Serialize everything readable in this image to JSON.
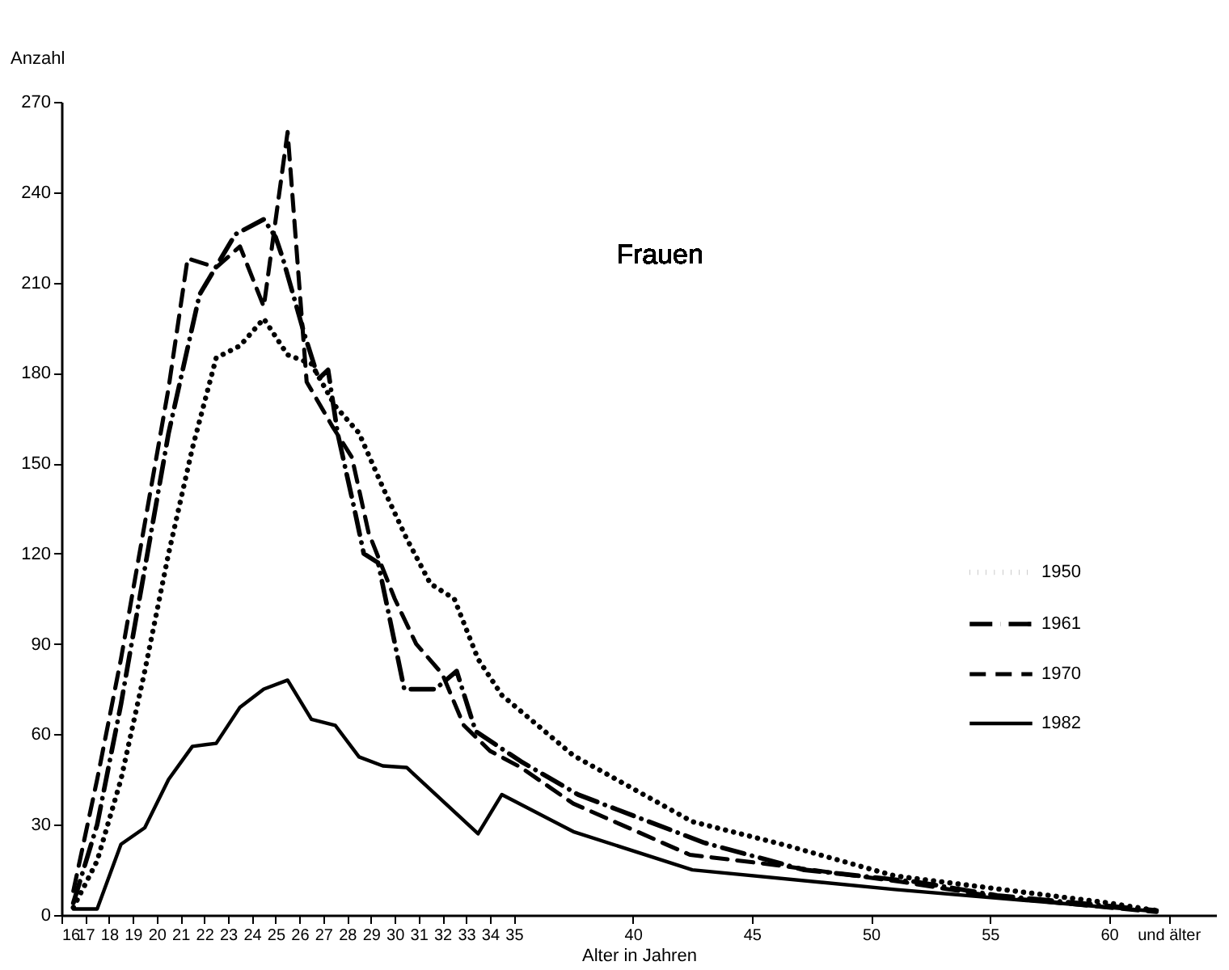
{
  "chart_data": {
    "type": "line",
    "title": "Frauen",
    "xlabel": "Alter in Jahren",
    "ylabel": "Anzahl",
    "xlim": [
      16,
      64.5
    ],
    "ylim": [
      0,
      270
    ],
    "xticks": [
      16,
      17,
      18,
      19,
      20,
      21,
      22,
      23,
      24,
      25,
      26,
      27,
      28,
      29,
      30,
      31,
      32,
      33,
      34,
      35,
      40,
      45,
      50,
      55,
      60,
      {
        "value": 62.5,
        "label": "und älter"
      }
    ],
    "yticks": [
      0,
      30,
      60,
      90,
      120,
      150,
      180,
      210,
      240,
      270
    ],
    "grid": false,
    "legend": "right",
    "marker": "none",
    "series": [
      {
        "name": "1950",
        "color": "#000000",
        "line_style": "dotted",
        "x": [
          16.5,
          17.5,
          18.5,
          19.5,
          20.5,
          21.5,
          22.5,
          23.5,
          24.5,
          25.5,
          26.5,
          27.5,
          28.5,
          29.5,
          30.5,
          31.5,
          32.5,
          33.5,
          34.5,
          37.5,
          42.5,
          46.5,
          51,
          55.5,
          60,
          62
        ],
        "values": [
          2.5,
          18,
          45,
          81,
          120,
          155,
          185,
          189,
          198,
          186,
          183,
          169,
          160,
          142,
          125,
          110,
          105,
          85,
          73,
          53,
          31,
          23,
          13,
          8.5,
          4,
          1.5
        ]
      },
      {
        "name": "1961",
        "color": "#000000",
        "line_style": "dashdot",
        "x": [
          16.5,
          17.5,
          18.5,
          19.5,
          20.5,
          21.8,
          23.3,
          24.5,
          25,
          25.3,
          26.2,
          26.8,
          27.2,
          27.6,
          28.3,
          28.7,
          29.3,
          29.8,
          30.4,
          31.7,
          32.6,
          33.4,
          35.3,
          37.7,
          43,
          47.2,
          51.9,
          55.3,
          62
        ],
        "values": [
          4,
          30,
          70,
          115,
          160,
          206,
          226,
          231,
          225,
          218,
          193,
          178,
          181,
          160,
          135,
          120,
          117,
          98,
          75,
          75,
          81,
          61,
          51,
          40,
          24,
          15,
          11,
          6.5,
          1.5
        ]
      },
      {
        "name": "1970",
        "color": "#000000",
        "line_style": "dashed",
        "x": [
          16.5,
          17.5,
          18.5,
          19.5,
          20.5,
          21.3,
          22.5,
          23.5,
          24.5,
          25.5,
          26.3,
          27.4,
          28.2,
          28.9,
          30,
          30.9,
          32,
          32.9,
          34,
          35.3,
          37.5,
          42.4,
          46,
          51.3,
          55.3,
          62
        ],
        "values": [
          8,
          45,
          85,
          130,
          175,
          218,
          215,
          222,
          202,
          260,
          177,
          162,
          152,
          127,
          105,
          90,
          80,
          63,
          54.5,
          49,
          37,
          20,
          16.6,
          11,
          6,
          1
        ]
      },
      {
        "name": "1982",
        "color": "#000000",
        "line_style": "solid",
        "x": [
          16.5,
          17.5,
          18.5,
          19.5,
          20.5,
          21.5,
          22.5,
          23.5,
          24.5,
          25.5,
          26.5,
          27.5,
          28.5,
          29.5,
          30.5,
          33.5,
          34.5,
          37.5,
          42.5,
          51,
          62
        ],
        "values": [
          2,
          2,
          23.5,
          29,
          45,
          56,
          57,
          69,
          75,
          78,
          65,
          63,
          52.5,
          49.5,
          49,
          27,
          40,
          27.7,
          15,
          8.5,
          1.2
        ]
      }
    ]
  }
}
